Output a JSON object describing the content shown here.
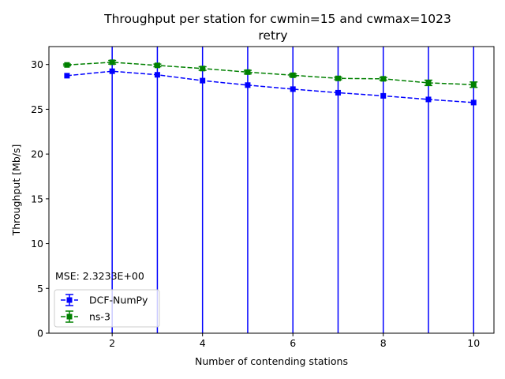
{
  "chart_data": {
    "type": "line",
    "title_line1": "Throughput per station for cwmin=15 and cwmax=1023",
    "title_line2": "retry",
    "xlabel": "Number of contending stations",
    "ylabel": "Throughput [Mb/s]",
    "xlim": [
      0.6,
      10.45
    ],
    "ylim": [
      0,
      32
    ],
    "xticks": [
      2,
      4,
      6,
      8,
      10
    ],
    "yticks": [
      0,
      5,
      10,
      15,
      20,
      25,
      30
    ],
    "annotation": "MSE: 2.3233E+00",
    "legend_position": "lower-left",
    "grid": false,
    "x": [
      1,
      2,
      3,
      4,
      5,
      6,
      7,
      8,
      9,
      10
    ],
    "series": [
      {
        "name": "DCF-NumPy",
        "color": "#0000ff",
        "marker": "square",
        "linestyle": "dashed",
        "values": [
          28.75,
          29.25,
          28.85,
          28.2,
          27.7,
          27.25,
          26.85,
          26.5,
          26.1,
          25.75
        ],
        "error_low": [
          0,
          0,
          0,
          0,
          0,
          0,
          0,
          0,
          0,
          0
        ],
        "error_high": [
          0,
          0,
          0,
          0,
          0,
          0,
          0,
          0,
          0,
          0
        ],
        "note_errorbars": "large vertical error bars extend to plot bounds at x=2..10"
      },
      {
        "name": "ns-3",
        "color": "#008000",
        "marker": "square",
        "linestyle": "dashed",
        "values": [
          29.95,
          30.25,
          29.9,
          29.55,
          29.15,
          28.8,
          28.45,
          28.4,
          27.95,
          27.75
        ],
        "error": [
          0.1,
          0.2,
          0.15,
          0.2,
          0.2,
          0.15,
          0.15,
          0.15,
          0.3,
          0.3
        ]
      }
    ],
    "blue_errorbar_x": [
      2,
      3,
      4,
      5,
      6,
      7,
      8,
      9,
      10
    ]
  }
}
